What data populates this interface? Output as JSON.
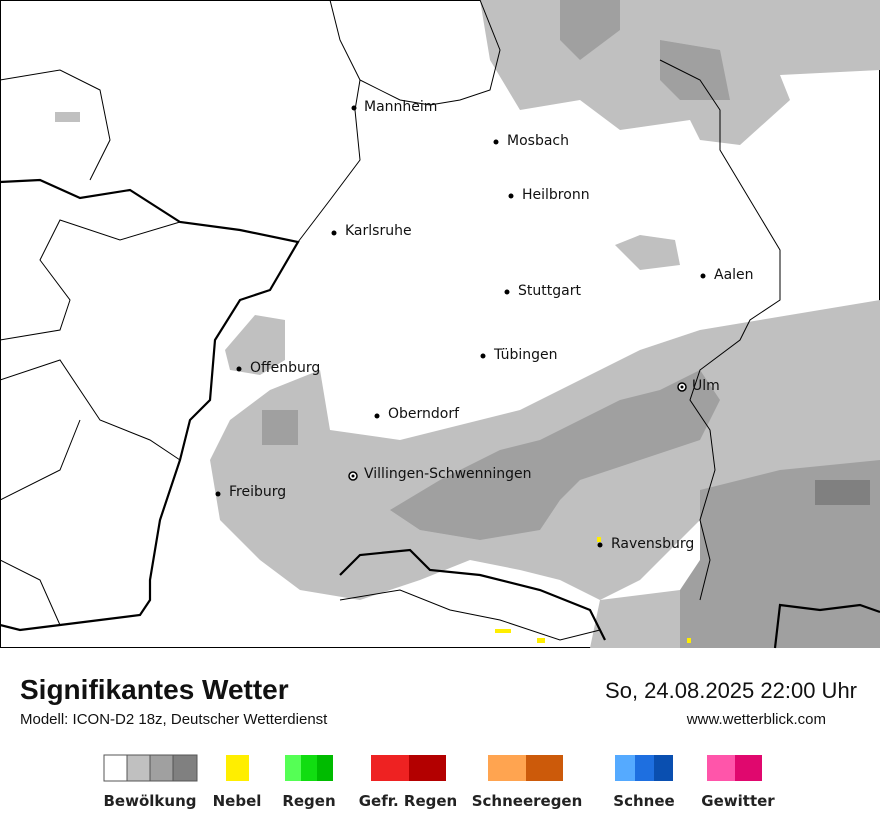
{
  "map": {
    "cities": [
      "Mannheim",
      "Mosbach",
      "Heilbronn",
      "Karlsruhe",
      "Aalen",
      "Stuttgart",
      "Tübingen",
      "Offenburg",
      "Ulm",
      "Oberndorf",
      "Villingen-Schwenningen",
      "Freiburg",
      "Ravensburg"
    ]
  },
  "footer": {
    "title": "Signifikantes Wetter",
    "model": "Modell: ICON-D2 18z, Deutscher Wetterdienst",
    "datetime": "So, 24.08.2025 22:00 Uhr",
    "url": "www.wetterblick.com"
  },
  "legend": {
    "items": [
      "Bewölkung",
      "Nebel",
      "Regen",
      "Gefr. Regen",
      "Schneeregen",
      "Schnee",
      "Gewitter"
    ]
  }
}
